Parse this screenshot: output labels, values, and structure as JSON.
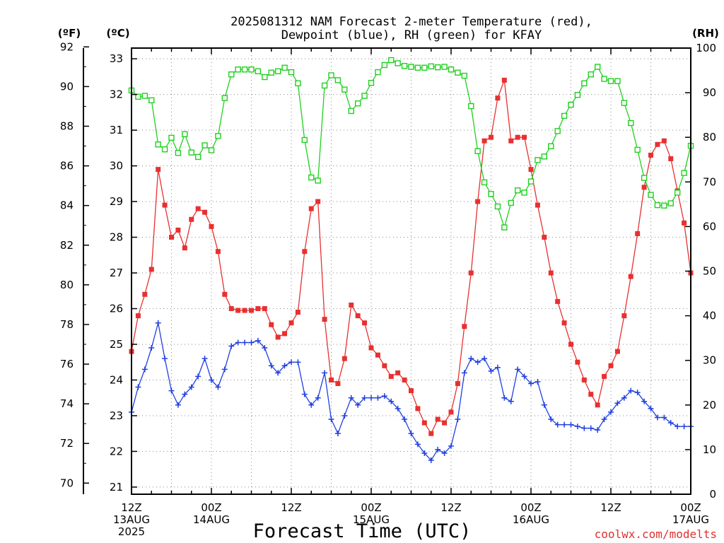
{
  "chart_data": {
    "type": "line",
    "title_line1": "2025081312 NAM Forecast 2-meter Temperature (red),",
    "title_line2": "Dewpoint (blue), RH (green) for KFAY",
    "xlabel": "Forecast Time (UTC)",
    "credit": "coolwx.com/modelts",
    "unit_labels": {
      "fahrenheit": "(ºF)",
      "celsius": "(ºC)",
      "rh": "(RH)"
    },
    "x_range_hours": [
      0,
      84
    ],
    "x_ticks": [
      {
        "h": 0,
        "lines": [
          "12Z",
          "13AUG",
          "2025"
        ]
      },
      {
        "h": 12,
        "lines": [
          "00Z",
          "14AUG"
        ]
      },
      {
        "h": 24,
        "lines": [
          "12Z"
        ]
      },
      {
        "h": 36,
        "lines": [
          "00Z",
          "15AUG"
        ]
      },
      {
        "h": 48,
        "lines": [
          "12Z"
        ]
      },
      {
        "h": 60,
        "lines": [
          "00Z",
          "16AUG"
        ]
      },
      {
        "h": 72,
        "lines": [
          "12Z"
        ]
      },
      {
        "h": 84,
        "lines": [
          "00Z",
          "17AUG"
        ]
      }
    ],
    "fahrenheit_axis": {
      "ticks": [
        70,
        72,
        74,
        76,
        78,
        80,
        82,
        84,
        86,
        88,
        90,
        92
      ]
    },
    "celsius_axis": {
      "ticks": [
        21,
        22,
        23,
        24,
        25,
        26,
        27,
        28,
        29,
        30,
        31,
        32,
        33
      ],
      "ylim": [
        20.8,
        33.3
      ]
    },
    "rh_axis": {
      "ticks": [
        0,
        10,
        20,
        30,
        40,
        50,
        60,
        70,
        80,
        90,
        100
      ],
      "ylim": [
        0,
        100
      ]
    },
    "grid": true,
    "colors": {
      "temperature": "#e83030",
      "dewpoint": "#2040e0",
      "rh": "#20d020",
      "grid": "#888888"
    },
    "series": [
      {
        "name": "Temperature",
        "color": "#e83030",
        "marker": "filled-square",
        "unit": "C",
        "values": [
          24.8,
          25.8,
          26.4,
          27.1,
          29.9,
          28.9,
          28.0,
          28.2,
          27.7,
          28.5,
          28.8,
          28.7,
          28.3,
          27.6,
          26.4,
          26.0,
          25.95,
          25.95,
          25.95,
          26.0,
          26.0,
          25.55,
          25.2,
          25.3,
          25.6,
          25.9,
          27.6,
          28.8,
          29.0,
          25.7,
          24.0,
          23.9,
          24.6,
          26.1,
          25.8,
          25.6,
          24.9,
          24.7,
          24.4,
          24.1,
          24.2,
          24.0,
          23.7,
          23.2,
          22.8,
          22.5,
          22.9,
          22.8,
          23.1,
          23.9,
          25.5,
          27.0,
          29.0,
          30.7,
          30.8,
          31.9,
          32.4,
          30.7,
          30.8,
          30.8,
          29.9,
          28.9,
          28.0,
          27.0,
          26.2,
          25.6,
          25.0,
          24.5,
          24.0,
          23.6,
          23.3,
          24.1,
          24.4,
          24.8,
          25.8,
          26.9,
          28.1,
          29.4,
          30.3,
          30.6,
          30.7,
          30.2,
          29.3,
          28.4,
          27.0
        ]
      },
      {
        "name": "Dewpoint",
        "color": "#2040e0",
        "marker": "plus",
        "unit": "C",
        "values": [
          23.1,
          23.8,
          24.3,
          24.9,
          25.6,
          24.6,
          23.7,
          23.3,
          23.6,
          23.8,
          24.1,
          24.6,
          24.0,
          23.8,
          24.3,
          24.95,
          25.05,
          25.05,
          25.05,
          25.1,
          24.9,
          24.4,
          24.2,
          24.4,
          24.5,
          24.5,
          23.6,
          23.3,
          23.5,
          24.2,
          22.9,
          22.5,
          23.0,
          23.5,
          23.3,
          23.5,
          23.5,
          23.5,
          23.55,
          23.4,
          23.2,
          22.9,
          22.5,
          22.2,
          21.95,
          21.75,
          22.05,
          21.95,
          22.15,
          22.9,
          24.2,
          24.6,
          24.5,
          24.6,
          24.25,
          24.35,
          23.5,
          23.4,
          24.3,
          24.1,
          23.9,
          23.95,
          23.3,
          22.9,
          22.75,
          22.75,
          22.75,
          22.7,
          22.65,
          22.65,
          22.6,
          22.9,
          23.1,
          23.35,
          23.5,
          23.7,
          23.65,
          23.4,
          23.2,
          22.95,
          22.95,
          22.8,
          22.7,
          22.7,
          22.7
        ]
      },
      {
        "name": "RH",
        "color": "#20d020",
        "marker": "open-square",
        "unit": "%",
        "values": [
          90.5,
          89.1,
          89.3,
          88.3,
          78.4,
          77.3,
          79.9,
          76.5,
          80.7,
          76.6,
          75.6,
          78.2,
          77.1,
          80.3,
          88.8,
          94.1,
          95.2,
          95.2,
          95.2,
          94.8,
          93.5,
          94.5,
          94.8,
          95.6,
          94.6,
          92.1,
          79.4,
          71.0,
          70.3,
          91.6,
          93.9,
          92.8,
          90.7,
          85.9,
          87.6,
          89.3,
          92.2,
          94.6,
          96.2,
          97.3,
          96.6,
          96.0,
          95.8,
          95.6,
          95.6,
          95.9,
          95.7,
          95.8,
          95.2,
          94.5,
          93.8,
          87.0,
          76.9,
          69.9,
          67.3,
          64.5,
          59.8,
          65.3,
          68.1,
          67.6,
          70.1,
          74.9,
          75.7,
          78.0,
          81.4,
          84.8,
          87.3,
          89.5,
          92.1,
          94.1,
          95.8,
          93.1,
          92.6,
          92.6,
          87.7,
          83.2,
          77.2,
          70.9,
          67.1,
          64.8,
          64.7,
          65.2,
          67.6,
          72.0,
          78.1
        ]
      }
    ]
  }
}
